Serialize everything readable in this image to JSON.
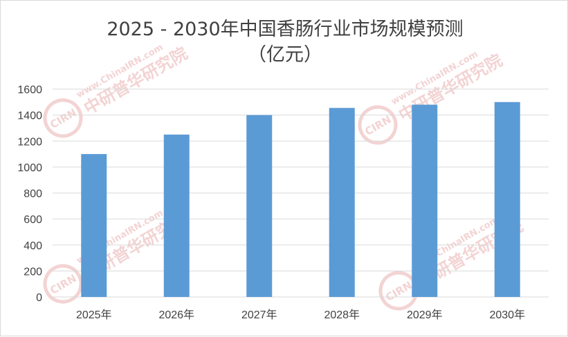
{
  "chart_data": {
    "type": "bar",
    "title": "2025 - 2030年中国香肠行业市场规模预测",
    "subtitle": "（亿元）",
    "categories": [
      "2025年",
      "2026年",
      "2027年",
      "2028年",
      "2029年",
      "2030年"
    ],
    "values": [
      1100,
      1250,
      1400,
      1455,
      1480,
      1500
    ],
    "ylim": [
      0,
      1600
    ],
    "yticks": [
      "0",
      "200",
      "400",
      "600",
      "800",
      "1000",
      "1200",
      "1400",
      "1600"
    ],
    "xlabel": "",
    "ylabel": "",
    "grid": true,
    "legend": "none",
    "bar_color": "#5b9bd5",
    "gridline_color": "#d9d9d9",
    "text_color": "#404040"
  },
  "watermark": {
    "brand": "中研普华研究院",
    "site": "www.ChinaIRN.com",
    "logo": "CIRN",
    "color": "#e8a9a9"
  }
}
